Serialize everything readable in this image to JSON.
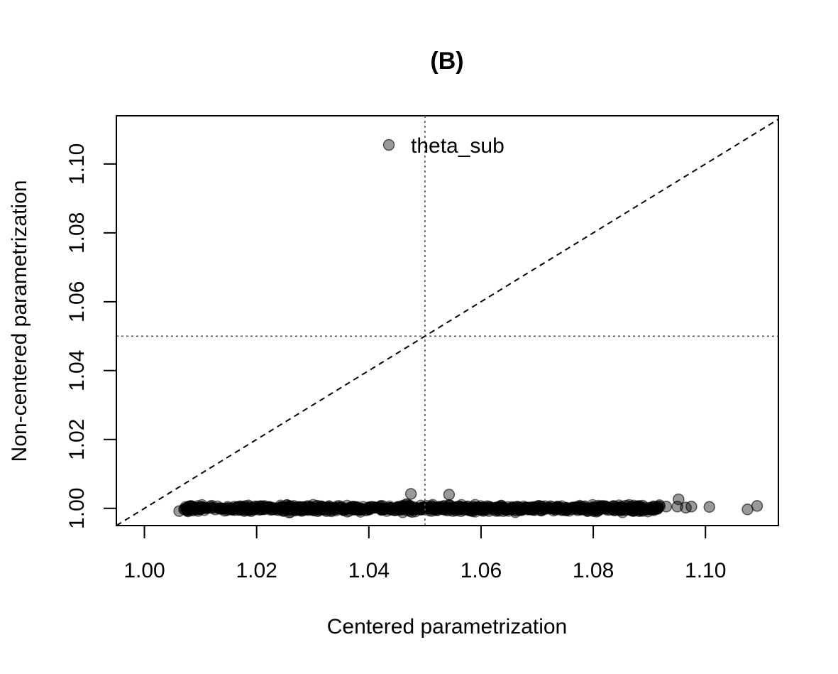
{
  "chart_data": {
    "type": "scatter",
    "title": "(B)",
    "xlabel": "Centered parametrization",
    "ylabel": "Non-centered parametrization",
    "xlim": [
      0.995,
      1.113
    ],
    "ylim": [
      0.995,
      1.114
    ],
    "x_ticks": [
      1.0,
      1.02,
      1.04,
      1.06,
      1.08,
      1.1
    ],
    "x_tick_labels": [
      "1.00",
      "1.02",
      "1.04",
      "1.06",
      "1.08",
      "1.10"
    ],
    "y_ticks": [
      1.0,
      1.02,
      1.04,
      1.06,
      1.08,
      1.1
    ],
    "y_tick_labels": [
      "1.00",
      "1.02",
      "1.04",
      "1.06",
      "1.08",
      "1.10"
    ],
    "reference_lines": {
      "diagonal": "y = x (dashed)",
      "vertical_x": 1.05,
      "horizontal_y": 1.05
    },
    "legend": {
      "position": "top",
      "entries": [
        "theta_sub"
      ]
    },
    "series": [
      {
        "name": "theta_sub",
        "color": "#000000",
        "point_alpha": 0.4,
        "x_range_dense": [
          1.007,
          1.092
        ],
        "y_center": 1.0,
        "y_spread": 0.0018,
        "outliers": [
          {
            "x": 1.0062,
            "y": 0.9992
          },
          {
            "x": 1.0475,
            "y": 1.0042
          },
          {
            "x": 1.0543,
            "y": 1.004
          },
          {
            "x": 1.0952,
            "y": 1.0026
          },
          {
            "x": 1.093,
            "y": 1.0005
          },
          {
            "x": 1.095,
            "y": 1.0005
          },
          {
            "x": 1.0965,
            "y": 1.0002
          },
          {
            "x": 1.0975,
            "y": 1.0005
          },
          {
            "x": 1.1007,
            "y": 1.0004
          },
          {
            "x": 1.1075,
            "y": 0.9997
          },
          {
            "x": 1.1092,
            "y": 1.0007
          }
        ]
      }
    ],
    "grid": false
  }
}
